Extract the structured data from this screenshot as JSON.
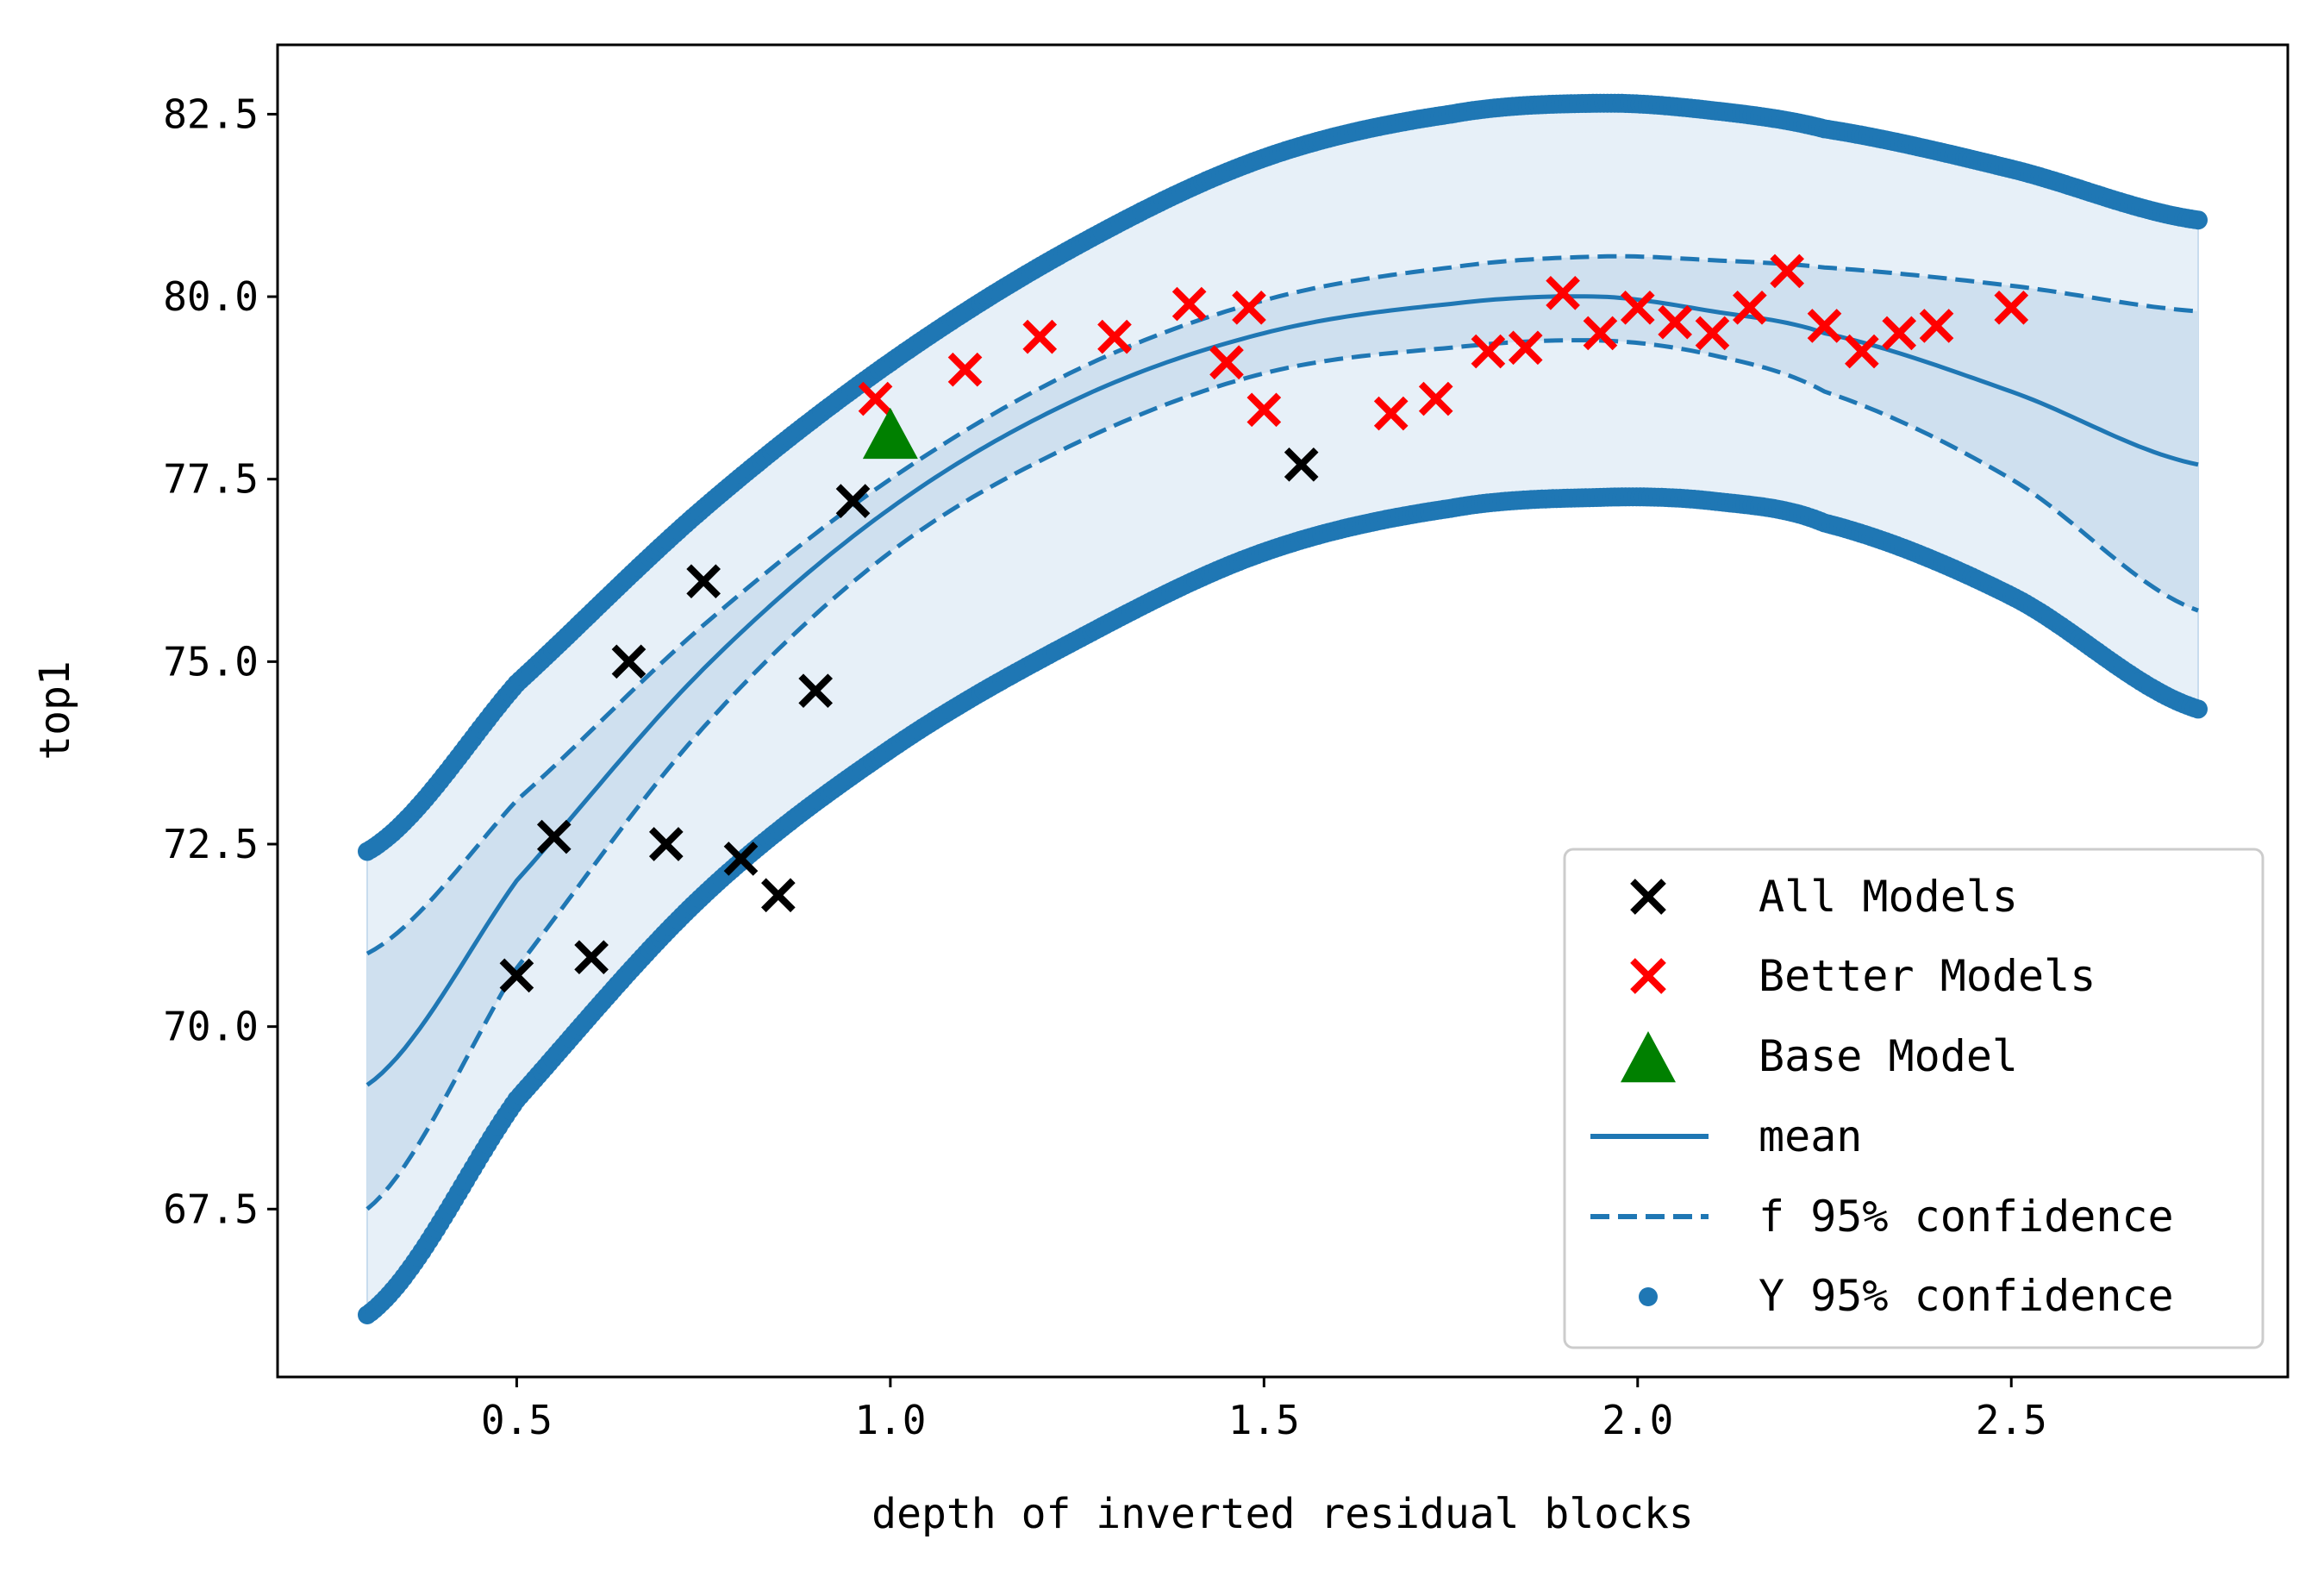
{
  "chart_data": {
    "type": "scatter",
    "title": "",
    "xlabel": "depth of inverted residual blocks",
    "ylabel": "top1",
    "xlim": [
      0.18,
      2.87
    ],
    "ylim": [
      65.2,
      83.45
    ],
    "xticks": [
      0.5,
      1.0,
      1.5,
      2.0,
      2.5
    ],
    "xtick_labels": [
      "0.5",
      "1.0",
      "1.5",
      "2.0",
      "2.5"
    ],
    "yticks": [
      67.5,
      70.0,
      72.5,
      75.0,
      77.5,
      80.0,
      82.5
    ],
    "ytick_labels": [
      "67.5",
      "70.0",
      "72.5",
      "75.0",
      "77.5",
      "80.0",
      "82.5"
    ],
    "legend_position": "lower-right",
    "fit_range": [
      0.3,
      2.75
    ],
    "colors": {
      "all_models": "#000000",
      "better_models": "#ff0000",
      "base_model": "#008000",
      "fit": "#1f77b4",
      "outer_band": "#e7f0f8",
      "inner_band": "#cfe0ef"
    },
    "legend": [
      {
        "key": "all",
        "label": "All Models"
      },
      {
        "key": "better",
        "label": "Better Models"
      },
      {
        "key": "base",
        "label": "Base Model"
      },
      {
        "key": "mean",
        "label": "mean"
      },
      {
        "key": "f95",
        "label": "f 95% confidence"
      },
      {
        "key": "y95",
        "label": "Y 95% confidence"
      }
    ],
    "series": [
      {
        "name": "All Models",
        "marker": "x",
        "points": [
          [
            0.5,
            70.7
          ],
          [
            0.55,
            72.6
          ],
          [
            0.6,
            70.95
          ],
          [
            0.65,
            75.0
          ],
          [
            0.7,
            72.5
          ],
          [
            0.75,
            76.1
          ],
          [
            0.8,
            72.3
          ],
          [
            0.85,
            71.8
          ],
          [
            0.9,
            74.6
          ],
          [
            0.95,
            77.2
          ],
          [
            1.55,
            77.7
          ]
        ]
      },
      {
        "name": "Better Models",
        "marker": "x",
        "points": [
          [
            0.98,
            78.6
          ],
          [
            1.1,
            79.0
          ],
          [
            1.2,
            79.45
          ],
          [
            1.3,
            79.45
          ],
          [
            1.4,
            79.9
          ],
          [
            1.45,
            79.1
          ],
          [
            1.48,
            79.85
          ],
          [
            1.5,
            78.45
          ],
          [
            1.67,
            78.4
          ],
          [
            1.73,
            78.6
          ],
          [
            1.8,
            79.25
          ],
          [
            1.85,
            79.3
          ],
          [
            1.9,
            80.05
          ],
          [
            1.95,
            79.5
          ],
          [
            2.0,
            79.85
          ],
          [
            2.05,
            79.65
          ],
          [
            2.1,
            79.5
          ],
          [
            2.15,
            79.85
          ],
          [
            2.2,
            80.35
          ],
          [
            2.25,
            79.6
          ],
          [
            2.3,
            79.25
          ],
          [
            2.35,
            79.5
          ],
          [
            2.4,
            79.6
          ],
          [
            2.5,
            79.85
          ]
        ]
      },
      {
        "name": "Base Model",
        "marker": "triangle",
        "points": [
          [
            1.0,
            78.1
          ]
        ]
      },
      {
        "name": "mean",
        "style": "solid",
        "x": [
          0.3,
          0.5,
          0.75,
          1.0,
          1.25,
          1.5,
          1.75,
          1.95,
          2.1,
          2.25,
          2.5,
          2.75
        ],
        "y": [
          69.2,
          72.0,
          74.9,
          77.1,
          78.6,
          79.5,
          79.9,
          80.0,
          79.8,
          79.5,
          78.7,
          77.7
        ]
      },
      {
        "name": "f 95% confidence upper",
        "style": "dashed",
        "x": [
          0.3,
          0.5,
          0.75,
          1.0,
          1.25,
          1.5,
          1.75,
          1.95,
          2.1,
          2.25,
          2.5,
          2.75
        ],
        "y": [
          71.0,
          73.1,
          75.5,
          77.5,
          79.0,
          79.95,
          80.4,
          80.55,
          80.5,
          80.4,
          80.15,
          79.8
        ]
      },
      {
        "name": "f 95% confidence lower",
        "style": "dashed",
        "x": [
          0.3,
          0.5,
          0.75,
          1.0,
          1.25,
          1.5,
          1.75,
          1.95,
          2.1,
          2.25,
          2.5,
          2.75
        ],
        "y": [
          67.5,
          70.8,
          74.1,
          76.5,
          78.0,
          78.95,
          79.3,
          79.4,
          79.2,
          78.7,
          77.5,
          75.7
        ]
      },
      {
        "name": "Y 95% confidence upper",
        "style": "dots",
        "x": [
          0.3,
          0.5,
          0.75,
          1.0,
          1.25,
          1.5,
          1.75,
          1.95,
          2.1,
          2.25,
          2.5,
          2.75
        ],
        "y": [
          72.4,
          74.7,
          77.1,
          79.1,
          80.7,
          81.9,
          82.5,
          82.65,
          82.55,
          82.3,
          81.75,
          81.05
        ]
      },
      {
        "name": "Y 95% confidence lower",
        "style": "dots",
        "x": [
          0.3,
          0.5,
          0.75,
          1.0,
          1.25,
          1.5,
          1.75,
          1.95,
          2.1,
          2.25,
          2.5,
          2.75
        ],
        "y": [
          66.05,
          69.0,
          71.8,
          73.8,
          75.3,
          76.5,
          77.1,
          77.25,
          77.2,
          76.9,
          75.9,
          74.35
        ]
      }
    ]
  }
}
